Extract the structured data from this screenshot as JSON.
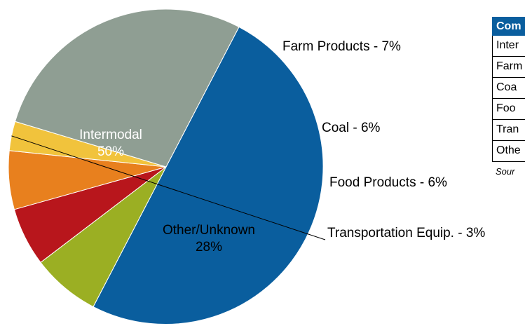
{
  "chart_data": {
    "type": "pie",
    "title": "",
    "slices": [
      {
        "label": "Intermodal",
        "value": 50,
        "color": "#0A5E9E",
        "label_text": "Intermodal",
        "value_text": "50%"
      },
      {
        "label": "Farm Products",
        "value": 7,
        "color": "#9BAF23",
        "label_text": "Farm Products - 7%"
      },
      {
        "label": "Coal",
        "value": 6,
        "color": "#B8161C",
        "label_text": "Coal - 6%"
      },
      {
        "label": "Food Products",
        "value": 6,
        "color": "#E8801E",
        "label_text": "Food Products - 6%"
      },
      {
        "label": "Transportation Equip.",
        "value": 3,
        "color": "#F1C33C",
        "label_text": "Transportation Equip. - 3%"
      },
      {
        "label": "Other/Unknown",
        "value": 28,
        "color": "#8F9E93",
        "label_text": "Other/Unknown",
        "value_text": "28%"
      }
    ]
  },
  "side_table": {
    "header": "Com",
    "rows": [
      "Inter",
      "Farm",
      "Coa",
      "Foo",
      "Tran",
      "Othe"
    ],
    "source": "Sour"
  }
}
